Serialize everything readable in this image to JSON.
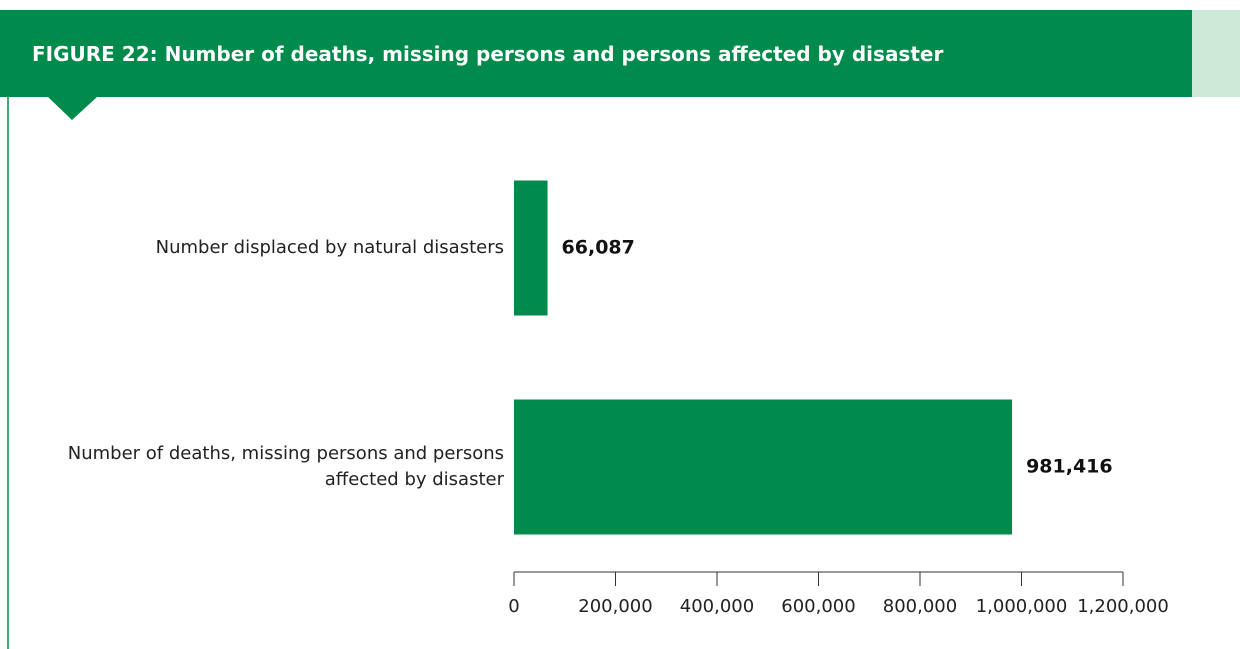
{
  "chart_data": {
    "type": "barh",
    "title": "FIGURE 22: Number of deaths, missing persons and persons affected by disaster",
    "categories": [
      "Number displaced by natural disasters",
      "Number of deaths, missing persons and persons affected by disaster"
    ],
    "values": [
      66087,
      981416
    ],
    "value_labels": [
      "66,087",
      "981,416"
    ],
    "color": "#008a4b",
    "xlim": [
      0,
      1200000
    ],
    "xticks": [
      0,
      {
        "value": 200000,
        "label": "200,000"
      },
      {
        "value": 400000,
        "label": "400,000"
      },
      {
        "value": 600000,
        "label": "600,000"
      },
      {
        "value": 800000,
        "label": "800,000"
      },
      {
        "value": 1000000,
        "label": "1,000,000"
      },
      {
        "value": 1200000,
        "label": "1,200,000"
      }
    ]
  }
}
